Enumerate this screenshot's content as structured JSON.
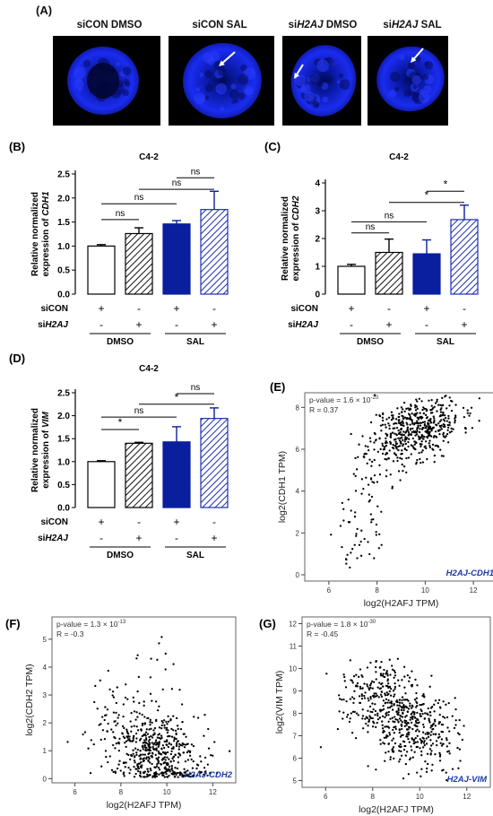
{
  "panel_a": {
    "letter": "(A)",
    "images": [
      {
        "label": "siCON DMSO",
        "arrow": false
      },
      {
        "label": "siCON SAL",
        "arrow": true
      },
      {
        "label": "siH2AJ DMSO",
        "arrow": true
      },
      {
        "label": "siH2AJ SAL",
        "arrow": true
      }
    ]
  },
  "bar_panels": [
    {
      "letter": "(B)",
      "title": "C4-2",
      "ylabel": [
        "Relative normalized",
        "expression of CDH1"
      ],
      "ylim": [
        0,
        2.5
      ],
      "yticks": [
        0,
        0.5,
        1.0,
        1.5,
        2.0,
        2.5
      ],
      "ytick_labels": [
        "0.0",
        "0.5",
        "1.0",
        "1.5",
        "2.0",
        "2.5"
      ],
      "values": [
        1.0,
        1.26,
        1.46,
        1.76
      ],
      "errors": [
        0.03,
        0.12,
        0.07,
        0.38
      ],
      "sig": [
        {
          "from": 0,
          "to": 1,
          "label": "ns",
          "y": 1.55
        },
        {
          "from": 0,
          "to": 2,
          "label": "ns",
          "y": 1.88
        },
        {
          "from": 1,
          "to": 3,
          "label": "ns",
          "y": 2.18
        },
        {
          "from": 2,
          "to": 3,
          "label": "ns",
          "y": 2.42
        }
      ]
    },
    {
      "letter": "(C)",
      "title": "C4-2",
      "ylabel": [
        "Relative normalized",
        "expression of CDH2"
      ],
      "ylim": [
        0,
        4
      ],
      "yticks": [
        0,
        1,
        2,
        3,
        4
      ],
      "ytick_labels": [
        "0",
        "1",
        "2",
        "3",
        "4"
      ],
      "values": [
        1.0,
        1.5,
        1.45,
        2.68
      ],
      "errors": [
        0.07,
        0.48,
        0.5,
        0.52
      ],
      "sig": [
        {
          "from": 0,
          "to": 1,
          "label": "ns",
          "y": 2.2
        },
        {
          "from": 0,
          "to": 2,
          "label": "ns",
          "y": 2.6
        },
        {
          "from": 1,
          "to": 3,
          "label": "*",
          "y": 3.3
        },
        {
          "from": 2,
          "to": 3,
          "label": "*",
          "y": 3.7
        }
      ]
    },
    {
      "letter": "(D)",
      "title": "C4-2",
      "ylabel": [
        "Relative normalized",
        "expression of VIM"
      ],
      "ylim": [
        0,
        2.5
      ],
      "yticks": [
        0,
        0.5,
        1.0,
        1.5,
        2.0,
        2.5
      ],
      "ytick_labels": [
        "0.0",
        "0.5",
        "1.0",
        "1.5",
        "2.0",
        "2.5"
      ],
      "values": [
        1.0,
        1.4,
        1.43,
        1.94
      ],
      "errors": [
        0.02,
        0.02,
        0.33,
        0.23
      ],
      "sig": [
        {
          "from": 0,
          "to": 1,
          "label": "*",
          "y": 1.7
        },
        {
          "from": 0,
          "to": 2,
          "label": "ns",
          "y": 1.97
        },
        {
          "from": 1,
          "to": 3,
          "label": "*",
          "y": 2.25
        },
        {
          "from": 2,
          "to": 3,
          "label": "ns",
          "y": 2.48
        }
      ]
    }
  ],
  "bar_legend": {
    "row1": "siCON",
    "row2_prefix": "si",
    "row2_gene": "H2AJ",
    "row1_signs": [
      "+",
      "-",
      "+",
      "-"
    ],
    "row2_signs": [
      "-",
      "+",
      "-",
      "+"
    ],
    "group1": "DMSO",
    "group2": "SAL"
  },
  "scatter_panels": [
    {
      "letter": "(E)",
      "pval_prefix": "p-value = 1.6 × 10",
      "pval_exp": "-20",
      "r": "R = 0.37",
      "xlabel": "log2(H2AFJ TPM)",
      "ylabel": "log2(CDH1 TPM)",
      "corner": "H2AJ-CDH1",
      "xticks": [
        6,
        8,
        10,
        12
      ],
      "xlim": [
        5,
        13
      ],
      "yticks": [
        0,
        2,
        4,
        6,
        8
      ],
      "ylim": [
        -0.3,
        8.7
      ],
      "cloud": {
        "cx": 9.6,
        "cy": 7.0,
        "sx": 0.95,
        "sy": 0.75,
        "slope": 0.35,
        "n": 520,
        "seed": 11
      },
      "tail": {
        "x0": 6.6,
        "x1": 9.0,
        "y0": 1.0,
        "y1": 6.5,
        "sd": 1.0,
        "n": 85,
        "seed": 5
      }
    },
    {
      "letter": "(F)",
      "pval_prefix": "p-value = 1.3 × 10",
      "pval_exp": "-13",
      "r": "R = -0.3",
      "xlabel": "log2(H2AFJ TPM)",
      "ylabel": "log2(CDH2 TPM)",
      "corner": "H2AJ-CDH2",
      "xticks": [
        6,
        8,
        10,
        12
      ],
      "xlim": [
        5,
        13
      ],
      "yticks": [
        0,
        1,
        2,
        3,
        4,
        5
      ],
      "ylim": [
        -0.15,
        5.8
      ],
      "cloud": {
        "cx": 9.5,
        "cy": 0.9,
        "sx": 1.05,
        "sy": 0.7,
        "slope": -0.2,
        "n": 540,
        "seed": 23
      },
      "tail": {
        "x0": 7.0,
        "x1": 10.5,
        "y0": 2.2,
        "y1": 3.6,
        "sd": 0.9,
        "n": 55,
        "seed": 9
      }
    },
    {
      "letter": "(G)",
      "pval_prefix": "p-value = 1.8 × 10",
      "pval_exp": "-30",
      "r": "R = -0.45",
      "xlabel": "log2(H2AFJ TPM)",
      "ylabel": "log2(VIM TPM)",
      "corner": "H2AJ-VIM",
      "xticks": [
        6,
        8,
        10,
        12
      ],
      "xlim": [
        5,
        13
      ],
      "yticks": [
        5,
        6,
        7,
        8,
        9,
        10,
        11,
        12
      ],
      "ylim": [
        4.7,
        12.3
      ],
      "cloud": {
        "cx": 9.3,
        "cy": 7.9,
        "sx": 1.05,
        "sy": 1.0,
        "slope": -0.45,
        "n": 560,
        "seed": 37
      },
      "tail": {
        "x0": 6.5,
        "x1": 8.5,
        "y0": 8.0,
        "y1": 9.6,
        "sd": 0.6,
        "n": 40,
        "seed": 3
      }
    }
  ]
}
